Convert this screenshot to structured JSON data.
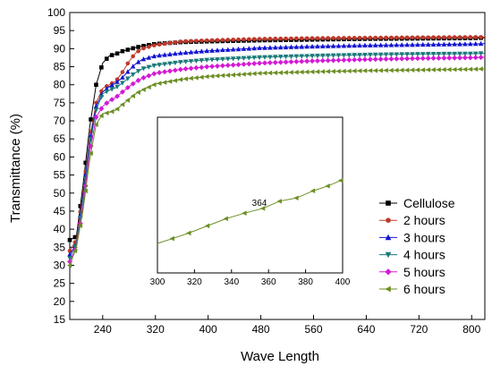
{
  "chart_data": [
    {
      "type": "line",
      "xlabel": "Wave Length",
      "ylabel": "Transmittance (%)",
      "xlim": [
        190,
        820
      ],
      "ylim": [
        15,
        100
      ],
      "xticks": [
        240,
        320,
        400,
        480,
        560,
        640,
        720,
        800
      ],
      "yticks": [
        15,
        20,
        25,
        30,
        35,
        40,
        45,
        50,
        55,
        60,
        65,
        70,
        75,
        80,
        85,
        90,
        95,
        100
      ],
      "legend_position": "bottom-right",
      "series": [
        {
          "name": "Cellulose",
          "color": "#000000",
          "marker": "square",
          "x": [
            190,
            200,
            210,
            220,
            230,
            240,
            250,
            260,
            270,
            280,
            290,
            300,
            320,
            360,
            400,
            480,
            560,
            640,
            720,
            800,
            820
          ],
          "y": [
            37,
            38,
            52,
            68,
            80,
            86,
            88,
            88.5,
            89.3,
            89.8,
            90.3,
            90.7,
            91.3,
            91.8,
            92.0,
            92.3,
            92.5,
            92.7,
            92.8,
            92.9,
            93.0
          ]
        },
        {
          "name": "2 hours",
          "color": "#c0392b",
          "marker": "circle",
          "x": [
            190,
            200,
            210,
            220,
            230,
            240,
            250,
            260,
            270,
            280,
            290,
            300,
            320,
            360,
            400,
            480,
            560,
            640,
            720,
            800,
            820
          ],
          "y": [
            34,
            37,
            50,
            65,
            75,
            79,
            80,
            81,
            83.5,
            86.5,
            88.8,
            90,
            91.0,
            92.0,
            92.3,
            92.7,
            92.9,
            93.0,
            93.1,
            93.2,
            93.2
          ]
        },
        {
          "name": "3 hours",
          "color": "#1414d2",
          "marker": "triangle-up",
          "x": [
            190,
            200,
            210,
            220,
            230,
            240,
            250,
            260,
            270,
            280,
            290,
            300,
            320,
            360,
            400,
            480,
            560,
            640,
            720,
            800,
            820
          ],
          "y": [
            33,
            36,
            49,
            64,
            74,
            78,
            79.5,
            80.5,
            82,
            84,
            85.8,
            87,
            88,
            88.8,
            89.4,
            90.2,
            90.6,
            90.9,
            91.1,
            91.3,
            91.4
          ]
        },
        {
          "name": "4 hours",
          "color": "#1a7a7a",
          "marker": "triangle-down",
          "x": [
            190,
            200,
            210,
            220,
            230,
            240,
            250,
            260,
            270,
            280,
            290,
            300,
            320,
            360,
            400,
            480,
            560,
            640,
            720,
            800,
            820
          ],
          "y": [
            32,
            36,
            48,
            63,
            73,
            77.5,
            78.5,
            79.2,
            80.5,
            82,
            83.4,
            84.4,
            85.4,
            86.3,
            86.9,
            87.6,
            88.0,
            88.3,
            88.5,
            88.6,
            88.7
          ]
        },
        {
          "name": "5 hours",
          "color": "#d41ad4",
          "marker": "diamond",
          "x": [
            190,
            200,
            210,
            220,
            230,
            240,
            250,
            260,
            270,
            280,
            290,
            300,
            320,
            360,
            400,
            480,
            560,
            640,
            720,
            800,
            820
          ],
          "y": [
            31,
            35,
            46,
            61,
            71,
            74,
            75.5,
            76.5,
            78,
            79.5,
            80.8,
            81.8,
            83.2,
            84.3,
            85.0,
            86.0,
            86.6,
            87.0,
            87.3,
            87.5,
            87.6
          ]
        },
        {
          "name": "6 hours",
          "color": "#6b8e23",
          "marker": "triangle-left",
          "x": [
            190,
            200,
            210,
            220,
            230,
            240,
            250,
            260,
            270,
            280,
            290,
            300,
            320,
            360,
            400,
            480,
            560,
            640,
            720,
            800,
            820
          ],
          "y": [
            30,
            35,
            45,
            59,
            69,
            72,
            72.3,
            73,
            74.5,
            76,
            77.5,
            78.5,
            80.2,
            81.5,
            82.3,
            83.2,
            83.6,
            83.9,
            84.1,
            84.3,
            84.4
          ]
        }
      ]
    },
    {
      "type": "line",
      "inset": true,
      "xlim": [
        300,
        400
      ],
      "xticks": [
        300,
        320,
        340,
        360,
        380,
        400
      ],
      "annotation": "364",
      "series": [
        {
          "color": "#6b8e23",
          "marker": "triangle-left",
          "x": [
            300,
            308,
            317,
            327,
            337,
            347,
            357,
            366,
            375,
            384,
            392,
            399
          ],
          "y": [
            0.0,
            0.06,
            0.13,
            0.22,
            0.31,
            0.38,
            0.44,
            0.53,
            0.57,
            0.66,
            0.72,
            0.79
          ]
        }
      ]
    }
  ]
}
